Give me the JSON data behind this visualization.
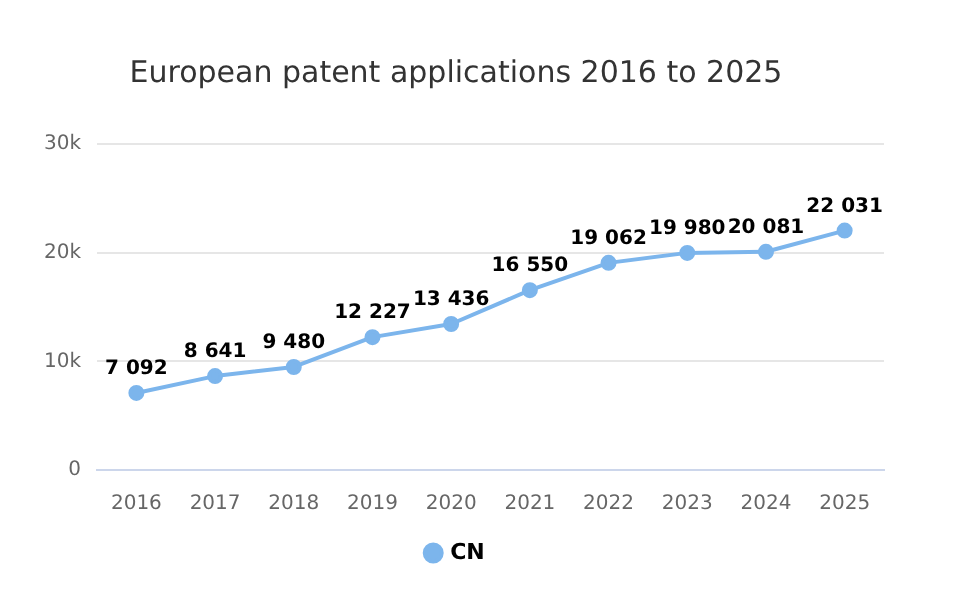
{
  "chart_data": {
    "type": "line",
    "title": "European patent applications 2016 to 2025",
    "categories": [
      "2016",
      "2017",
      "2018",
      "2019",
      "2020",
      "2021",
      "2022",
      "2023",
      "2024",
      "2025"
    ],
    "series": [
      {
        "name": "CN",
        "color": "#7cb5ec",
        "values": [
          7092,
          8641,
          9480,
          12227,
          13436,
          16550,
          19062,
          19980,
          20081,
          22031
        ],
        "value_labels": [
          "7 092",
          "8 641",
          "9 480",
          "12 227",
          "13 436",
          "16 550",
          "19 062",
          "19 980",
          "20 081",
          "22 031"
        ]
      }
    ],
    "ylim": [
      0,
      30000
    ],
    "yticks": [
      0,
      {
        "value": 10000,
        "label": "10k"
      },
      {
        "value": 20000,
        "label": "20k"
      },
      {
        "value": 30000,
        "label": "30k"
      }
    ],
    "grid": "y",
    "legend": "bottom",
    "marker": "circle"
  }
}
